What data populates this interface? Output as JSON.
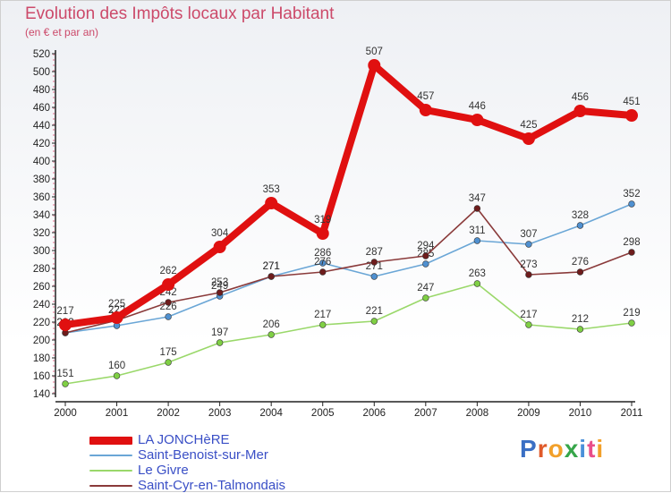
{
  "header": {
    "title": "Evolution des Impôts locaux par Habitant",
    "subtitle": "(en € et par an)"
  },
  "brand": {
    "text": "Proxiti",
    "letter_colors": [
      "#3a6fc4",
      "#e05a2a",
      "#f2a02a",
      "#37a64a",
      "#4a90d9",
      "#e94e8a",
      "#f2a02a"
    ]
  },
  "chart_data": {
    "type": "line",
    "title": "Evolution des Impôts locaux par Habitant",
    "subtitle": "(en € et par an)",
    "xlabel": "",
    "ylabel": "",
    "categories": [
      "2000",
      "2001",
      "2002",
      "2003",
      "2004",
      "2005",
      "2006",
      "2007",
      "2008",
      "2009",
      "2010",
      "2011"
    ],
    "ylim": [
      140,
      520
    ],
    "yticks": [
      140,
      160,
      180,
      200,
      220,
      240,
      260,
      280,
      300,
      320,
      340,
      360,
      380,
      400,
      420,
      440,
      460,
      480,
      500,
      520
    ],
    "grid": false,
    "legend_position": "bottom-left",
    "series": [
      {
        "name": "LA JONCHèRE",
        "color": "#e01010",
        "marker_color": "#e01010",
        "values": [
          217,
          225,
          262,
          304,
          353,
          319,
          507,
          457,
          446,
          425,
          456,
          451
        ]
      },
      {
        "name": "Saint-Benoist-sur-Mer",
        "color": "#6aa6d6",
        "marker_color": "#4f90d0",
        "values": [
          208,
          216,
          226,
          249,
          271,
          286,
          271,
          285,
          311,
          307,
          328,
          352
        ]
      },
      {
        "name": "Le Givre",
        "color": "#9ad86a",
        "marker_color": "#7fcf44",
        "values": [
          151,
          160,
          175,
          197,
          206,
          217,
          221,
          247,
          263,
          217,
          212,
          219
        ]
      },
      {
        "name": "Saint-Cyr-en-Talmondais",
        "color": "#8a3a3a",
        "marker_color": "#6e1c1c",
        "values": [
          208,
          222,
          242,
          253,
          271,
          276,
          287,
          294,
          347,
          273,
          276,
          298
        ]
      }
    ]
  }
}
